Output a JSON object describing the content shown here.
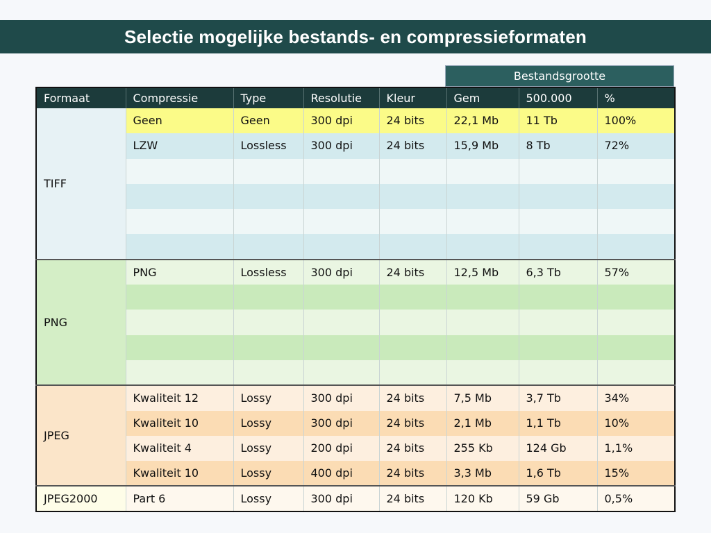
{
  "title": "Selectie mogelijke bestands- en compressieformaten",
  "group_header": "Bestandsgrootte",
  "columns": [
    "Formaat",
    "Compressie",
    "Type",
    "Resolutie",
    "Kleur",
    "Gem",
    "500.000",
    "%"
  ],
  "formats": {
    "tiff": "TIFF",
    "png": "PNG",
    "jpeg": "JPEG",
    "jpeg2000": "JPEG2000"
  },
  "rows": {
    "tiff_geen": {
      "compressie": "Geen",
      "type": "Geen",
      "resolutie": "300 dpi",
      "kleur": "24 bits",
      "gem": "22,1 Mb",
      "total": "11 Tb",
      "pct": "100%"
    },
    "tiff_lzw": {
      "compressie": "LZW",
      "type": "Lossless",
      "resolutie": "300 dpi",
      "kleur": "24 bits",
      "gem": "15,9 Mb",
      "total": "8 Tb",
      "pct": "72%"
    },
    "png": {
      "compressie": "PNG",
      "type": "Lossless",
      "resolutie": "300 dpi",
      "kleur": "24 bits",
      "gem": "12,5 Mb",
      "total": "6,3 Tb",
      "pct": "57%"
    },
    "jpeg_q12": {
      "compressie": "Kwaliteit 12",
      "type": "Lossy",
      "resolutie": "300 dpi",
      "kleur": "24 bits",
      "gem": "7,5 Mb",
      "total": "3,7 Tb",
      "pct": "34%"
    },
    "jpeg_q10a": {
      "compressie": "Kwaliteit 10",
      "type": "Lossy",
      "resolutie": "300 dpi",
      "kleur": "24 bits",
      "gem": "2,1 Mb",
      "total": "1,1 Tb",
      "pct": "10%"
    },
    "jpeg_q4": {
      "compressie": "Kwaliteit 4",
      "type": "Lossy",
      "resolutie": "200 dpi",
      "kleur": "24 bits",
      "gem": "255 Kb",
      "total": "124 Gb",
      "pct": "1,1%"
    },
    "jpeg_q10b": {
      "compressie": "Kwaliteit 10",
      "type": "Lossy",
      "resolutie": "400 dpi",
      "kleur": "24 bits",
      "gem": "3,3 Mb",
      "total": "1,6 Tb",
      "pct": "15%"
    },
    "j2k": {
      "compressie": "Part 6",
      "type": "Lossy",
      "resolutie": "300 dpi",
      "kleur": "24 bits",
      "gem": "120 Kb",
      "total": "59 Gb",
      "pct": "0,5%"
    }
  }
}
